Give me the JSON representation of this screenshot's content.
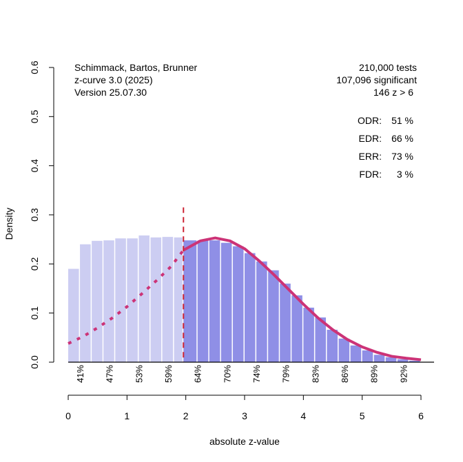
{
  "chart_data": {
    "type": "bar",
    "title": "",
    "xlabel": "absolute z-value",
    "ylabel": "Density",
    "xlim": [
      0,
      6
    ],
    "ylim": [
      0,
      0.6
    ],
    "x_ticks": [
      0,
      1,
      2,
      3,
      4,
      5,
      6
    ],
    "y_ticks": [
      "0.0",
      "0.1",
      "0.2",
      "0.3",
      "0.4",
      "0.5",
      "0.6"
    ],
    "grid": false,
    "significance_threshold": 1.96,
    "colors": {
      "nonsignificant_bar": "#cccdf2",
      "significant_bar": "#8f8fe6",
      "curve": "#cc3377",
      "threshold_line": "#cc2233"
    },
    "histogram": {
      "bin_width": 0.2,
      "bins": [
        {
          "x0": 0.0,
          "x1": 0.2,
          "density": 0.19
        },
        {
          "x0": 0.2,
          "x1": 0.4,
          "density": 0.24
        },
        {
          "x0": 0.4,
          "x1": 0.6,
          "density": 0.247
        },
        {
          "x0": 0.6,
          "x1": 0.8,
          "density": 0.248
        },
        {
          "x0": 0.8,
          "x1": 1.0,
          "density": 0.252
        },
        {
          "x0": 1.0,
          "x1": 1.2,
          "density": 0.252
        },
        {
          "x0": 1.2,
          "x1": 1.4,
          "density": 0.258
        },
        {
          "x0": 1.4,
          "x1": 1.6,
          "density": 0.254
        },
        {
          "x0": 1.6,
          "x1": 1.8,
          "density": 0.255
        },
        {
          "x0": 1.8,
          "x1": 1.96,
          "density": 0.254
        },
        {
          "x0": 1.96,
          "x1": 2.2,
          "density": 0.248
        },
        {
          "x0": 2.2,
          "x1": 2.4,
          "density": 0.248
        },
        {
          "x0": 2.4,
          "x1": 2.6,
          "density": 0.248
        },
        {
          "x0": 2.6,
          "x1": 2.8,
          "density": 0.243
        },
        {
          "x0": 2.8,
          "x1": 3.0,
          "density": 0.236
        },
        {
          "x0": 3.0,
          "x1": 3.2,
          "density": 0.222
        },
        {
          "x0": 3.2,
          "x1": 3.4,
          "density": 0.205
        },
        {
          "x0": 3.4,
          "x1": 3.6,
          "density": 0.187
        },
        {
          "x0": 3.6,
          "x1": 3.8,
          "density": 0.16
        },
        {
          "x0": 3.8,
          "x1": 4.0,
          "density": 0.136
        },
        {
          "x0": 4.0,
          "x1": 4.2,
          "density": 0.111
        },
        {
          "x0": 4.2,
          "x1": 4.4,
          "density": 0.091
        },
        {
          "x0": 4.4,
          "x1": 4.6,
          "density": 0.066
        },
        {
          "x0": 4.6,
          "x1": 4.8,
          "density": 0.048
        },
        {
          "x0": 4.8,
          "x1": 5.0,
          "density": 0.034
        },
        {
          "x0": 5.0,
          "x1": 5.2,
          "density": 0.024
        },
        {
          "x0": 5.2,
          "x1": 5.4,
          "density": 0.015
        },
        {
          "x0": 5.4,
          "x1": 5.6,
          "density": 0.01
        },
        {
          "x0": 5.6,
          "x1": 5.8,
          "density": 0.006
        },
        {
          "x0": 5.8,
          "x1": 6.0,
          "density": 0.003
        }
      ]
    },
    "fitted_curve": {
      "name": "z-curve fit",
      "dotted_below": 1.96,
      "x": [
        0.0,
        0.25,
        0.5,
        0.75,
        1.0,
        1.25,
        1.5,
        1.75,
        1.96,
        2.25,
        2.5,
        2.75,
        3.0,
        3.25,
        3.5,
        3.75,
        4.0,
        4.25,
        4.5,
        4.75,
        5.0,
        5.25,
        5.5,
        5.75,
        6.0
      ],
      "y": [
        0.038,
        0.052,
        0.07,
        0.09,
        0.113,
        0.139,
        0.166,
        0.195,
        0.228,
        0.247,
        0.253,
        0.247,
        0.231,
        0.206,
        0.178,
        0.148,
        0.118,
        0.09,
        0.066,
        0.046,
        0.031,
        0.02,
        0.012,
        0.008,
        0.005
      ]
    },
    "threshold_line": {
      "x": 1.96,
      "y_top": 0.315,
      "style": "dashed"
    },
    "power_labels": [
      {
        "x": 0.2,
        "label": "41%"
      },
      {
        "x": 0.7,
        "label": "47%"
      },
      {
        "x": 1.2,
        "label": "53%"
      },
      {
        "x": 1.7,
        "label": "59%"
      },
      {
        "x": 2.2,
        "label": "64%"
      },
      {
        "x": 2.7,
        "label": "70%"
      },
      {
        "x": 3.2,
        "label": "74%"
      },
      {
        "x": 3.7,
        "label": "79%"
      },
      {
        "x": 4.2,
        "label": "83%"
      },
      {
        "x": 4.7,
        "label": "86%"
      },
      {
        "x": 5.2,
        "label": "89%"
      },
      {
        "x": 5.7,
        "label": "92%"
      }
    ],
    "annotations": {
      "left": [
        "Schimmack, Bartos, Brunner",
        "z-curve 3.0 (2025)",
        "Version 25.07.30"
      ],
      "right_top": [
        "210,000 tests",
        "107,096 significant",
        "146 z > 6"
      ],
      "stats": [
        {
          "label": "ODR:",
          "value": "51 %"
        },
        {
          "label": "EDR:",
          "value": "66 %"
        },
        {
          "label": "ERR:",
          "value": "73 %"
        },
        {
          "label": "FDR:",
          "value": "3 %"
        }
      ]
    }
  }
}
